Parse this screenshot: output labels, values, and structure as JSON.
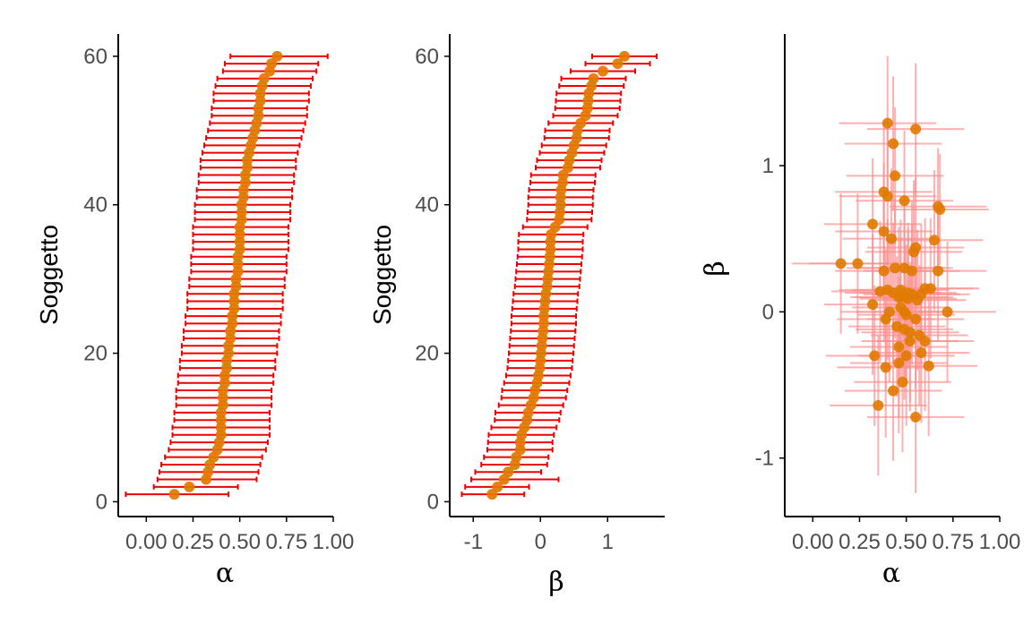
{
  "colors": {
    "point": "#e07a00",
    "errorbar": "#ee0000",
    "errorbar_light": "#ff8f8f",
    "axis": "#000000",
    "tick_text": "#4d4d4d"
  },
  "chart_data": [
    {
      "type": "scatter",
      "subtype": "errorbar-horizontal",
      "xlabel": "α",
      "ylabel": "Soggetto",
      "xlim": [
        -0.15,
        1.0
      ],
      "ylim": [
        -2,
        63
      ],
      "xticks": [
        "0.00",
        "0.25",
        "0.50",
        "0.75",
        "1.00"
      ],
      "xtick_values": [
        0,
        0.25,
        0.5,
        0.75,
        1.0
      ],
      "yticks": [
        "0",
        "20",
        "40",
        "60"
      ],
      "ytick_values": [
        0,
        20,
        40,
        60
      ],
      "grid": false,
      "legend": "none",
      "y": [
        1,
        2,
        3,
        4,
        5,
        6,
        7,
        8,
        9,
        10,
        11,
        12,
        13,
        14,
        15,
        16,
        17,
        18,
        19,
        20,
        21,
        22,
        23,
        24,
        25,
        26,
        27,
        28,
        29,
        30,
        31,
        32,
        33,
        34,
        35,
        36,
        37,
        38,
        39,
        40,
        41,
        42,
        43,
        44,
        45,
        46,
        47,
        48,
        49,
        50,
        51,
        52,
        53,
        54,
        55,
        56,
        57,
        58,
        59,
        60
      ],
      "x": [
        0.15,
        0.23,
        0.32,
        0.33,
        0.34,
        0.36,
        0.38,
        0.39,
        0.4,
        0.4,
        0.4,
        0.4,
        0.41,
        0.41,
        0.41,
        0.42,
        0.42,
        0.43,
        0.43,
        0.44,
        0.44,
        0.45,
        0.45,
        0.46,
        0.46,
        0.47,
        0.47,
        0.47,
        0.48,
        0.48,
        0.49,
        0.49,
        0.49,
        0.5,
        0.5,
        0.5,
        0.5,
        0.51,
        0.51,
        0.51,
        0.52,
        0.52,
        0.53,
        0.53,
        0.54,
        0.54,
        0.55,
        0.56,
        0.57,
        0.58,
        0.59,
        0.6,
        0.6,
        0.61,
        0.61,
        0.62,
        0.63,
        0.66,
        0.67,
        0.7
      ],
      "x_lower": [
        -0.11,
        0.04,
        0.06,
        0.07,
        0.08,
        0.1,
        0.12,
        0.13,
        0.14,
        0.14,
        0.15,
        0.15,
        0.16,
        0.16,
        0.16,
        0.17,
        0.17,
        0.18,
        0.18,
        0.19,
        0.19,
        0.2,
        0.2,
        0.21,
        0.21,
        0.22,
        0.22,
        0.22,
        0.23,
        0.23,
        0.24,
        0.24,
        0.24,
        0.25,
        0.25,
        0.25,
        0.25,
        0.26,
        0.26,
        0.26,
        0.27,
        0.27,
        0.28,
        0.28,
        0.29,
        0.29,
        0.3,
        0.31,
        0.32,
        0.33,
        0.34,
        0.35,
        0.35,
        0.36,
        0.36,
        0.37,
        0.38,
        0.41,
        0.42,
        0.45
      ],
      "x_upper": [
        0.44,
        0.49,
        0.59,
        0.6,
        0.61,
        0.62,
        0.64,
        0.65,
        0.66,
        0.66,
        0.66,
        0.66,
        0.67,
        0.67,
        0.67,
        0.68,
        0.68,
        0.69,
        0.69,
        0.7,
        0.7,
        0.71,
        0.71,
        0.72,
        0.72,
        0.73,
        0.73,
        0.73,
        0.74,
        0.74,
        0.75,
        0.75,
        0.75,
        0.76,
        0.76,
        0.76,
        0.76,
        0.77,
        0.77,
        0.77,
        0.78,
        0.78,
        0.79,
        0.79,
        0.8,
        0.8,
        0.81,
        0.82,
        0.83,
        0.84,
        0.85,
        0.86,
        0.86,
        0.87,
        0.87,
        0.88,
        0.89,
        0.91,
        0.92,
        0.97
      ]
    },
    {
      "type": "scatter",
      "subtype": "errorbar-horizontal",
      "xlabel": "β",
      "ylabel": "Soggetto",
      "xlim": [
        -1.35,
        1.85
      ],
      "ylim": [
        -2,
        63
      ],
      "xticks": [
        "-1",
        "0",
        "1"
      ],
      "xtick_values": [
        -1,
        0,
        1
      ],
      "yticks": [
        "0",
        "20",
        "40",
        "60"
      ],
      "ytick_values": [
        0,
        20,
        40,
        60
      ],
      "grid": false,
      "legend": "none",
      "y": [
        1,
        2,
        3,
        4,
        5,
        6,
        7,
        8,
        9,
        10,
        11,
        12,
        13,
        14,
        15,
        16,
        17,
        18,
        19,
        20,
        21,
        22,
        23,
        24,
        25,
        26,
        27,
        28,
        29,
        30,
        31,
        32,
        33,
        34,
        35,
        36,
        37,
        38,
        39,
        40,
        41,
        42,
        43,
        44,
        45,
        46,
        47,
        48,
        49,
        50,
        51,
        52,
        53,
        54,
        55,
        56,
        57,
        58,
        59,
        60
      ],
      "x": [
        -0.72,
        -0.64,
        -0.54,
        -0.48,
        -0.38,
        -0.36,
        -0.3,
        -0.3,
        -0.28,
        -0.24,
        -0.2,
        -0.18,
        -0.14,
        -0.1,
        -0.08,
        -0.05,
        -0.03,
        -0.01,
        0.0,
        0.01,
        0.02,
        0.03,
        0.04,
        0.05,
        0.05,
        0.06,
        0.07,
        0.08,
        0.1,
        0.11,
        0.12,
        0.13,
        0.14,
        0.15,
        0.15,
        0.16,
        0.22,
        0.28,
        0.29,
        0.3,
        0.3,
        0.31,
        0.33,
        0.34,
        0.41,
        0.43,
        0.47,
        0.5,
        0.54,
        0.55,
        0.6,
        0.67,
        0.7,
        0.71,
        0.72,
        0.76,
        0.79,
        0.93,
        1.15,
        1.25
      ],
      "x_lower": [
        -1.17,
        -1.12,
        -1.03,
        -0.97,
        -0.88,
        -0.84,
        -0.79,
        -0.78,
        -0.77,
        -0.73,
        -0.68,
        -0.67,
        -0.62,
        -0.58,
        -0.57,
        -0.54,
        -0.51,
        -0.49,
        -0.48,
        -0.47,
        -0.46,
        -0.45,
        -0.44,
        -0.43,
        -0.43,
        -0.42,
        -0.41,
        -0.4,
        -0.38,
        -0.37,
        -0.36,
        -0.35,
        -0.34,
        -0.33,
        -0.33,
        -0.32,
        -0.26,
        -0.2,
        -0.19,
        -0.18,
        -0.18,
        -0.17,
        -0.15,
        -0.14,
        -0.07,
        -0.05,
        -0.01,
        0.02,
        0.06,
        0.07,
        0.12,
        0.19,
        0.22,
        0.23,
        0.24,
        0.28,
        0.31,
        0.45,
        0.67,
        0.77
      ],
      "x_upper": [
        -0.24,
        -0.17,
        0.27,
        0.01,
        0.1,
        0.12,
        0.18,
        0.18,
        0.2,
        0.24,
        0.28,
        0.3,
        0.34,
        0.38,
        0.4,
        0.43,
        0.45,
        0.47,
        0.48,
        0.49,
        0.5,
        0.51,
        0.52,
        0.53,
        0.53,
        0.54,
        0.55,
        0.56,
        0.58,
        0.59,
        0.6,
        0.61,
        0.62,
        0.63,
        0.63,
        0.64,
        0.7,
        0.76,
        0.77,
        0.78,
        0.78,
        0.79,
        0.81,
        0.82,
        0.89,
        0.91,
        0.95,
        0.98,
        1.02,
        1.03,
        1.08,
        1.15,
        1.18,
        1.19,
        1.2,
        1.24,
        1.27,
        1.41,
        1.63,
        1.73
      ]
    },
    {
      "type": "scatter",
      "subtype": "errorbar-crosshair",
      "xlabel": "α",
      "ylabel": "β",
      "xlim": [
        -0.15,
        1.0
      ],
      "ylim": [
        -1.4,
        1.9
      ],
      "xticks": [
        "0.00",
        "0.25",
        "0.50",
        "0.75",
        "1.00"
      ],
      "xtick_values": [
        0,
        0.25,
        0.5,
        0.75,
        1.0
      ],
      "yticks": [
        "-1",
        "0",
        "1"
      ],
      "ytick_values": [
        -1,
        0,
        1
      ],
      "grid": false,
      "legend": "none",
      "x": [
        0.4,
        0.55,
        0.43,
        0.44,
        0.38,
        0.49,
        0.4,
        0.67,
        0.68,
        0.32,
        0.38,
        0.42,
        0.55,
        0.54,
        0.65,
        0.15,
        0.24,
        0.38,
        0.44,
        0.49,
        0.53,
        0.67,
        0.4,
        0.47,
        0.51,
        0.53,
        0.58,
        0.6,
        0.63,
        0.36,
        0.43,
        0.46,
        0.49,
        0.51,
        0.56,
        0.72,
        0.32,
        0.41,
        0.47,
        0.5,
        0.55,
        0.39,
        0.45,
        0.49,
        0.52,
        0.57,
        0.6,
        0.33,
        0.46,
        0.5,
        0.39,
        0.43,
        0.48,
        0.35,
        0.55,
        0.46,
        0.52,
        0.58,
        0.62,
        0.49
      ],
      "y": [
        1.29,
        1.25,
        1.15,
        0.93,
        0.82,
        0.76,
        0.79,
        0.72,
        0.7,
        0.6,
        0.55,
        0.5,
        0.44,
        0.41,
        0.49,
        0.33,
        0.33,
        0.28,
        0.3,
        0.3,
        0.28,
        0.28,
        0.15,
        0.15,
        0.13,
        0.12,
        0.12,
        0.16,
        0.16,
        0.14,
        0.13,
        0.1,
        0.1,
        0.09,
        0.08,
        0.0,
        0.05,
        0.0,
        0.03,
        -0.02,
        -0.05,
        -0.05,
        -0.1,
        -0.12,
        -0.14,
        -0.16,
        -0.2,
        -0.3,
        -0.24,
        -0.3,
        -0.38,
        -0.54,
        -0.48,
        -0.64,
        -0.72,
        -0.35,
        -0.2,
        -0.28,
        -0.37,
        0.0
      ],
      "x_err": [
        0.26,
        0.26,
        0.26,
        0.26,
        0.26,
        0.26,
        0.26,
        0.26,
        0.26,
        0.26,
        0.26,
        0.26,
        0.26,
        0.26,
        0.26,
        0.26,
        0.26,
        0.26,
        0.26,
        0.26,
        0.26,
        0.26,
        0.26,
        0.26,
        0.26,
        0.26,
        0.26,
        0.26,
        0.26,
        0.26,
        0.26,
        0.26,
        0.26,
        0.26,
        0.26,
        0.26,
        0.26,
        0.26,
        0.26,
        0.26,
        0.26,
        0.26,
        0.26,
        0.26,
        0.26,
        0.26,
        0.26,
        0.26,
        0.26,
        0.26,
        0.26,
        0.26,
        0.26,
        0.26,
        0.26,
        0.26,
        0.26,
        0.26,
        0.26,
        0.26
      ],
      "y_err": [
        0.46,
        0.45,
        0.46,
        0.47,
        0.47,
        0.48,
        0.47,
        0.4,
        0.38,
        0.45,
        0.47,
        0.48,
        0.48,
        0.49,
        0.48,
        0.48,
        0.48,
        0.48,
        0.48,
        0.48,
        0.48,
        0.48,
        0.48,
        0.48,
        0.48,
        0.48,
        0.48,
        0.48,
        0.48,
        0.48,
        0.48,
        0.48,
        0.48,
        0.48,
        0.48,
        0.48,
        0.48,
        0.48,
        0.48,
        0.48,
        0.48,
        0.48,
        0.48,
        0.48,
        0.48,
        0.48,
        0.48,
        0.48,
        0.48,
        0.48,
        0.48,
        0.48,
        0.48,
        0.48,
        0.52,
        0.48,
        0.48,
        0.48,
        0.48,
        0.48
      ]
    }
  ]
}
